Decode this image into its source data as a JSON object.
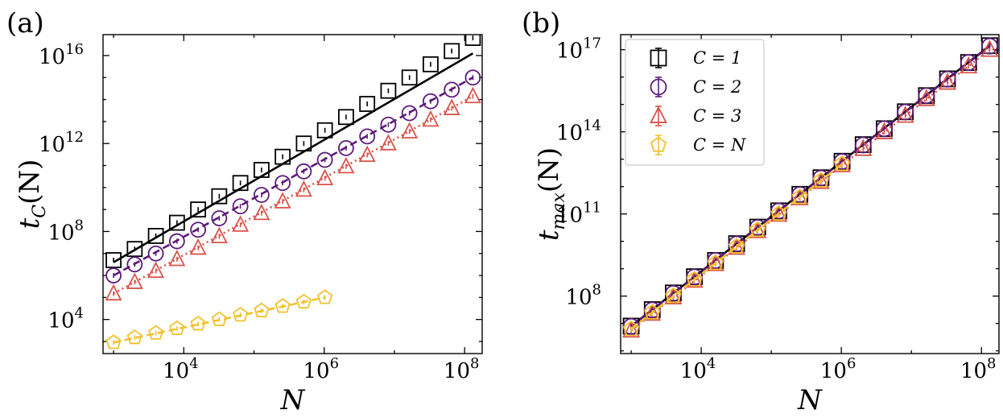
{
  "colors": {
    "C1": "#000000",
    "C2": "#5c1a7a",
    "C3": "#d9534a",
    "CN": "#f2c12e"
  },
  "chart_data": [
    {
      "panel": "(a)",
      "type": "scatter",
      "xlabel": "N",
      "ylabel": "t_C(N)",
      "ylabel_main": "t",
      "ylabel_sub": "C",
      "ylabel_rest": "(N)",
      "xscale": "log",
      "yscale": "log",
      "xlim_log10": [
        2.85,
        8.25
      ],
      "ylim_log10": [
        2.45,
        16.95
      ],
      "xticks": [
        {
          "log": 4,
          "exp": "4"
        },
        {
          "log": 6,
          "exp": "6"
        },
        {
          "log": 8,
          "exp": "8"
        }
      ],
      "yticks": [
        {
          "log": 4,
          "exp": "4"
        },
        {
          "log": 8,
          "exp": "8"
        },
        {
          "log": 12,
          "exp": "12"
        },
        {
          "log": 16,
          "exp": "16"
        }
      ],
      "series": [
        {
          "key": "C1",
          "marker": "square",
          "x": [
            1000,
            2000,
            4000,
            8000,
            16000,
            32000,
            64000,
            128000,
            256000,
            512000,
            1024000,
            2048000,
            4096000,
            8192000,
            16384000,
            32768000,
            65536000,
            131072000
          ],
          "y": [
            5000000.0,
            16000000.0,
            63000000.0,
            250000000.0,
            1000000000.0,
            4000000000.0,
            16000000000.0,
            63000000000.0,
            250000000000.0,
            1000000000000.0,
            4000000000000.0,
            16000000000000.0,
            63000000000000.0,
            250000000000000.0,
            1000000000000000.0,
            4000000000000000.0,
            1.6e+16,
            6.3e+16
          ],
          "fit": {
            "x": [
              1000,
              131072000
            ],
            "y": [
              4000000.0,
              1.25e+16
            ],
            "style": "solid"
          }
        },
        {
          "key": "C2",
          "marker": "circle",
          "x": [
            1000,
            2000,
            4000,
            8000,
            16000,
            32000,
            64000,
            128000,
            256000,
            512000,
            1024000,
            2048000,
            4096000,
            8192000,
            16384000,
            32768000,
            65536000,
            131072000
          ],
          "y": [
            1000000.0,
            3200000.0,
            10000000.0,
            36000000.0,
            120000000.0,
            400000000.0,
            1400000000.0,
            4600000000.0,
            16000000000.0,
            54000000000.0,
            180000000000.0,
            620000000000.0,
            2100000000000.0,
            7200000000000.0,
            24000000000000.0,
            83000000000000.0,
            280000000000000.0,
            1000000000000000.0
          ],
          "fit": {
            "x": [
              1000,
              131072000
            ],
            "y": [
              1000000.0,
              1000000000000000.0
            ],
            "style": "dashed"
          }
        },
        {
          "key": "C3",
          "marker": "triangle",
          "x": [
            1000,
            2000,
            4000,
            8000,
            16000,
            32000,
            64000,
            128000,
            256000,
            512000,
            1024000,
            2048000,
            4096000,
            8192000,
            16384000,
            32768000,
            65536000,
            131072000
          ],
          "y": [
            150000.0,
            500000.0,
            1600000.0,
            5500000.0,
            18000000.0,
            60000000.0,
            200000000.0,
            680000000.0,
            2300000000.0,
            7800000000.0,
            26000000000.0,
            90000000000.0,
            300000000000.0,
            1000000000000.0,
            3500000000000.0,
            12000000000000.0,
            40000000000000.0,
            140000000000000.0
          ],
          "fit": {
            "x": [
              1000,
              131072000
            ],
            "y": [
              150000.0,
              140000000000000.0
            ],
            "style": "dotted"
          }
        },
        {
          "key": "CN",
          "marker": "pentagon",
          "x": [
            1000,
            2000,
            4000,
            8000,
            16000,
            32000,
            64000,
            128000,
            256000,
            512000,
            1024000
          ],
          "y": [
            900,
            1500,
            2400,
            3900,
            6300,
            10000,
            16000,
            25000,
            40000,
            63000,
            100000
          ],
          "fit": {
            "x": [
              1000,
              1024000
            ],
            "y": [
              900,
              100000
            ],
            "style": "dashed"
          }
        }
      ]
    },
    {
      "panel": "(b)",
      "type": "scatter",
      "xlabel": "N",
      "ylabel": "t_max(N)",
      "ylabel_main": "t",
      "ylabel_sub": "max",
      "ylabel_rest": "(N)",
      "xscale": "log",
      "yscale": "log",
      "xlim_log10": [
        2.85,
        8.25
      ],
      "ylim_log10": [
        5.9,
        17.55
      ],
      "xticks": [
        {
          "log": 4,
          "exp": "4"
        },
        {
          "log": 6,
          "exp": "6"
        },
        {
          "log": 8,
          "exp": "8"
        }
      ],
      "yticks": [
        {
          "log": 8,
          "exp": "8"
        },
        {
          "log": 11,
          "exp": "11"
        },
        {
          "log": 14,
          "exp": "14"
        },
        {
          "log": 17,
          "exp": "17"
        }
      ],
      "legend": {
        "placement": "upper-left",
        "entries": [
          {
            "key": "C1",
            "marker": "square",
            "label": "C = 1"
          },
          {
            "key": "C2",
            "marker": "circle",
            "label": "C = 2"
          },
          {
            "key": "C3",
            "marker": "triangle",
            "label": "C = 3"
          },
          {
            "key": "CN",
            "marker": "pentagon",
            "label": "C = N"
          }
        ]
      },
      "series": [
        {
          "key": "C1",
          "marker": "square",
          "x": [
            1000,
            2000,
            4000,
            8000,
            16000,
            32000,
            64000,
            128000,
            256000,
            512000,
            1024000,
            2048000,
            4096000,
            8192000,
            16384000,
            32768000,
            65536000,
            131072000
          ],
          "y": [
            8000000.0,
            32000000.0,
            130000000.0,
            510000000.0,
            2000000000.0,
            8200000000.0,
            33000000000.0,
            130000000000.0,
            520000000000.0,
            2100000000000.0,
            8400000000000.0,
            34000000000000.0,
            130000000000000.0,
            540000000000000.0,
            2100000000000000.0,
            8600000000000000.0,
            3.4e+16,
            1.4e+17
          ],
          "fit": {
            "x": [
              1000,
              131072000
            ],
            "y": [
              8000000.0,
              1.4e+17
            ],
            "style": "solid"
          }
        },
        {
          "key": "C2",
          "marker": "circle",
          "x": [
            1000,
            2000,
            4000,
            8000,
            16000,
            32000,
            64000,
            128000,
            256000,
            512000,
            1024000,
            2048000,
            4096000,
            8192000,
            16384000,
            32768000,
            65536000,
            131072000
          ],
          "y": [
            7800000.0,
            31000000.0,
            125000000.0,
            500000000.0,
            2000000000.0,
            8000000000.0,
            32000000000.0,
            128000000000.0,
            510000000000.0,
            2050000000000.0,
            8200000000000.0,
            33000000000000.0,
            130000000000000.0,
            530000000000000.0,
            2100000000000000.0,
            8400000000000000.0,
            3.4e+16,
            1.35e+17
          ],
          "fit": {
            "x": [
              1000,
              131072000
            ],
            "y": [
              7800000.0,
              1.35e+17
            ],
            "style": "dashed"
          }
        },
        {
          "key": "C3",
          "marker": "triangle",
          "x": [
            1000,
            2000,
            4000,
            8000,
            16000,
            32000,
            64000,
            128000,
            256000,
            512000,
            1024000,
            2048000,
            4096000,
            8192000,
            16384000,
            32768000,
            65536000,
            131072000
          ],
          "y": [
            5600000.0,
            23000000.0,
            92000000.0,
            370000000.0,
            1500000000.0,
            5900000000.0,
            24000000000.0,
            95000000000.0,
            380000000000.0,
            1500000000000.0,
            6100000000000.0,
            24000000000000.0,
            98000000000000.0,
            390000000000000.0,
            1600000000000000.0,
            6300000000000000.0,
            2.5e+16,
            1e+17
          ],
          "fit": {
            "x": [
              1000,
              131072000
            ],
            "y": [
              5600000.0,
              1e+17
            ],
            "style": "dotted"
          }
        },
        {
          "key": "CN",
          "marker": "pentagon",
          "x": [
            1000,
            2000,
            4000,
            8000,
            16000,
            32000,
            64000,
            128000,
            256000,
            512000,
            1024000
          ],
          "y": [
            6200000.0,
            25000000.0,
            100000000.0,
            400000000.0,
            1600000000.0,
            6400000000.0,
            26000000000.0,
            100000000000.0,
            410000000000.0,
            1650000000000.0,
            6600000000000.0
          ],
          "fit": {
            "x": [
              1000,
              1024000
            ],
            "y": [
              6200000.0,
              6600000000000.0
            ],
            "style": "dashed"
          }
        }
      ]
    }
  ]
}
